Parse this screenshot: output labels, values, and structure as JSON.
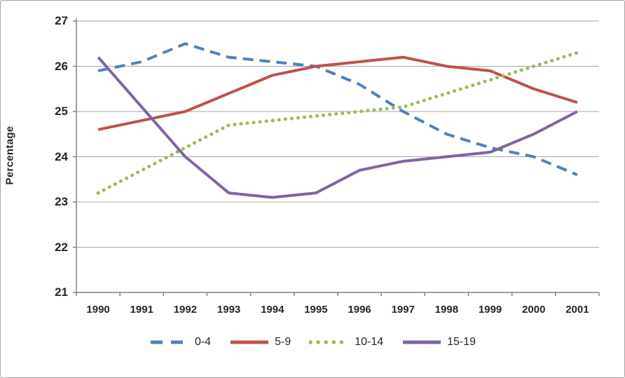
{
  "chart_data": {
    "type": "line",
    "title": "",
    "xlabel": "",
    "ylabel": "Percentage",
    "categories": [
      "1990",
      "1991",
      "1992",
      "1993",
      "1994",
      "1995",
      "1996",
      "1997",
      "1998",
      "1999",
      "2000",
      "2001"
    ],
    "ylim": [
      21,
      27
    ],
    "yticks": [
      21,
      22,
      23,
      24,
      25,
      26,
      27
    ],
    "grid": "horizontal",
    "legend_position": "bottom",
    "series": [
      {
        "name": "0-4",
        "color": "#4F81BD",
        "style": "dashed",
        "values": [
          25.9,
          26.1,
          26.5,
          26.2,
          26.1,
          26.0,
          25.6,
          25.0,
          24.5,
          24.2,
          24.0,
          23.6
        ]
      },
      {
        "name": "5-9",
        "color": "#C0504D",
        "style": "solid",
        "values": [
          24.6,
          24.8,
          25.0,
          25.4,
          25.8,
          26.0,
          26.1,
          26.2,
          26.0,
          25.9,
          25.5,
          25.2
        ]
      },
      {
        "name": "10-14",
        "color": "#9BBB59",
        "style": "dotted",
        "values": [
          23.2,
          23.7,
          24.2,
          24.7,
          24.8,
          24.9,
          25.0,
          25.1,
          25.4,
          25.7,
          26.0,
          26.3
        ]
      },
      {
        "name": "15-19",
        "color": "#8064A2",
        "style": "solid",
        "values": [
          26.2,
          25.1,
          24.0,
          23.2,
          23.1,
          23.2,
          23.7,
          23.9,
          24.0,
          24.1,
          24.5,
          25.0
        ]
      }
    ],
    "axis_color": "#808080",
    "gridline_color": "#a6a6a6"
  }
}
